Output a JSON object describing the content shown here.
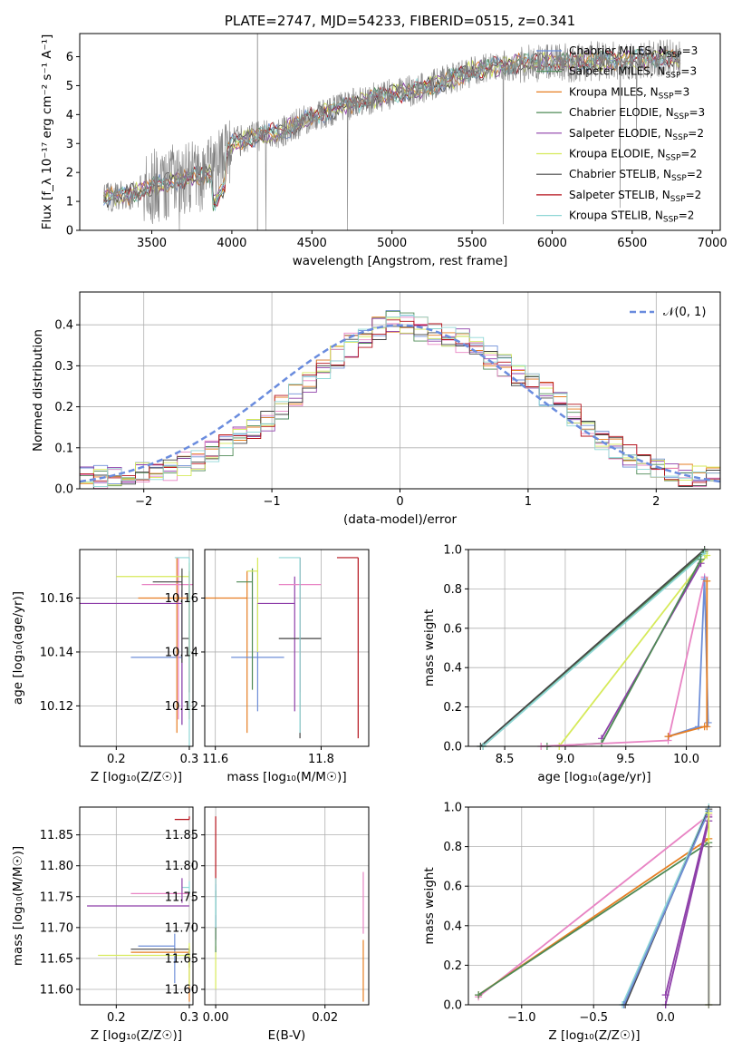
{
  "colors": {
    "blue": "#6f8fd8",
    "green": "#4e8a55",
    "orange": "#e67e22",
    "purple": "#8e3fa9",
    "pink": "#e884c4",
    "yellow": "#d6ea5a",
    "dark": "#444444",
    "red": "#b5121b",
    "cyan": "#8fd7d6",
    "gray": "#808080",
    "dashed": "#6a8cde"
  },
  "chart_data": [
    {
      "id": "spectrum",
      "type": "line",
      "title": "PLATE=2747, MJD=54233, FIBERID=0515, z=0.341",
      "xlabel": "wavelength [Angstrom, rest frame]",
      "ylabel": "Flux [f_λ 10⁻¹⁷ erg cm⁻² s⁻¹ A⁻¹]",
      "xlim": [
        3050,
        7050
      ],
      "ylim": [
        0,
        6.8
      ],
      "xticks": [
        "3500",
        "4000",
        "4500",
        "5000",
        "5500",
        "6000",
        "6500",
        "7000"
      ],
      "yticks": [
        "0",
        "1",
        "2",
        "3",
        "4",
        "5",
        "6"
      ],
      "legend_position": "right",
      "legend": [
        {
          "label": "Chabrier MILES, N",
          "sub": "SSP",
          "suffix": "=3",
          "color": "blue"
        },
        {
          "label": "Salpeter MILES, N",
          "sub": "SSP",
          "suffix": "=3",
          "color": "green"
        },
        {
          "label": "Kroupa MILES, N",
          "sub": "SSP",
          "suffix": "=3",
          "color": "orange"
        },
        {
          "label": "Chabrier ELODIE, N",
          "sub": "SSP",
          "suffix": "=3",
          "color": "green"
        },
        {
          "label": "Salpeter ELODIE, N",
          "sub": "SSP",
          "suffix": "=2",
          "color": "purple"
        },
        {
          "label": "Kroupa ELODIE, N",
          "sub": "SSP",
          "suffix": "=2",
          "color": "yellow"
        },
        {
          "label": "Chabrier STELIB, N",
          "sub": "SSP",
          "suffix": "=2",
          "color": "dark"
        },
        {
          "label": "Salpeter STELIB, N",
          "sub": "SSP",
          "suffix": "=2",
          "color": "red"
        },
        {
          "label": "Kroupa STELIB, N",
          "sub": "SSP",
          "suffix": "=2",
          "color": "cyan"
        }
      ],
      "continuum": [
        [
          3200,
          1.1
        ],
        [
          3400,
          1.3
        ],
        [
          3500,
          1.5
        ],
        [
          3700,
          1.8
        ],
        [
          3900,
          2.0
        ],
        [
          4000,
          3.0
        ],
        [
          4100,
          3.2
        ],
        [
          4300,
          3.4
        ],
        [
          4500,
          3.9
        ],
        [
          4700,
          4.3
        ],
        [
          4900,
          4.6
        ],
        [
          5100,
          4.8
        ],
        [
          5300,
          5.1
        ],
        [
          5500,
          5.5
        ],
        [
          5700,
          5.7
        ],
        [
          5900,
          5.8
        ],
        [
          6100,
          5.8
        ],
        [
          6300,
          5.85
        ],
        [
          6500,
          5.9
        ],
        [
          6700,
          5.95
        ],
        [
          6800,
          5.9
        ]
      ],
      "data_range": [
        3200,
        6800
      ]
    },
    {
      "id": "residuals",
      "type": "line",
      "xlabel": "(data-model)/error",
      "ylabel": "Normed distribution",
      "xlim": [
        -2.5,
        2.5
      ],
      "ylim": [
        0,
        0.48
      ],
      "xticks": [
        "−2",
        "−1",
        "0",
        "1",
        "2"
      ],
      "yticks": [
        "0.0",
        "0.1",
        "0.2",
        "0.3",
        "0.4"
      ],
      "legend_position": "top-right",
      "normal_label": "𝒩(0, 1)",
      "hist_base": [
        0.025,
        0.03,
        0.03,
        0.035,
        0.04,
        0.045,
        0.05,
        0.06,
        0.07,
        0.09,
        0.11,
        0.13,
        0.15,
        0.17,
        0.2,
        0.23,
        0.26,
        0.29,
        0.32,
        0.35,
        0.37,
        0.39,
        0.41,
        0.4,
        0.39,
        0.38,
        0.37,
        0.36,
        0.34,
        0.32,
        0.3,
        0.28,
        0.26,
        0.23,
        0.21,
        0.18,
        0.15,
        0.12,
        0.1,
        0.08,
        0.065,
        0.05,
        0.04,
        0.035,
        0.03,
        0.025
      ]
    },
    {
      "id": "age-vs-Z",
      "type": "scatter",
      "xlabel": "Z [log₁₀(Z/Z☉)]",
      "ylabel": "age  [log₁₀(age/yr)]",
      "xlim": [
        0.15,
        0.305
      ],
      "ylim": [
        10.105,
        10.178
      ],
      "xticks": [
        "0.2",
        "0.3"
      ],
      "yticks": [
        "10.12",
        "10.14",
        "10.16"
      ],
      "points": [
        {
          "x": 0.29,
          "y": 10.138,
          "xerr": [
            0.07,
            0.0
          ],
          "yerr": [
            0.025,
            0.025
          ],
          "color": "blue"
        },
        {
          "x": 0.283,
          "y": 10.155,
          "xerr": [
            0.0,
            0.0
          ],
          "yerr": [
            0.045,
            0.02
          ],
          "color": "orange"
        },
        {
          "x": 0.285,
          "y": 10.165,
          "xerr": [
            0.05,
            0.02
          ],
          "yerr": [
            0.05,
            0.01
          ],
          "color": "pink"
        },
        {
          "x": 0.3,
          "y": 10.168,
          "xerr": [
            0.1,
            0.0
          ],
          "yerr": [
            0.03,
            0.005
          ],
          "color": "yellow"
        },
        {
          "x": 0.29,
          "y": 10.158,
          "xerr": [
            0.14,
            0.0
          ],
          "yerr": [
            0.045,
            0.005
          ],
          "color": "purple"
        },
        {
          "x": 0.29,
          "y": 10.166,
          "xerr": [
            0.04,
            0.0
          ],
          "yerr": [
            0.03,
            0.005
          ],
          "color": "dark"
        },
        {
          "x": 0.3,
          "y": 10.145,
          "xerr": [
            0.01,
            0.0
          ],
          "yerr": [
            0.02,
            0.02
          ],
          "color": "dark"
        },
        {
          "x": 0.3,
          "y": 10.16,
          "xerr": [
            0.07,
            0.0
          ],
          "yerr": [
            0.045,
            0.01
          ],
          "color": "orange"
        },
        {
          "x": 0.3,
          "y": 10.175,
          "xerr": [
            0.02,
            0.0
          ],
          "yerr": [
            0.07,
            0.0
          ],
          "color": "cyan"
        }
      ]
    },
    {
      "id": "age-vs-mass",
      "type": "scatter",
      "xlabel": "mass [log₁₀(M/M☉)]",
      "ylabel": "",
      "xlim": [
        11.58,
        11.89
      ],
      "ylim": [
        10.105,
        10.178
      ],
      "xticks": [
        "11.6",
        "11.8"
      ],
      "yticks": [
        "10.12",
        "10.14",
        "10.16"
      ],
      "points": [
        {
          "x": 11.66,
          "y": 10.16,
          "xerr": [
            0.08,
            0.0
          ],
          "yerr": [
            0.05,
            0.01
          ],
          "color": "orange"
        },
        {
          "x": 11.68,
          "y": 10.138,
          "xerr": [
            0.05,
            0.05
          ],
          "yerr": [
            0.02,
            0.02
          ],
          "color": "blue"
        },
        {
          "x": 11.67,
          "y": 10.166,
          "xerr": [
            0.03,
            0.0
          ],
          "yerr": [
            0.04,
            0.005
          ],
          "color": "green"
        },
        {
          "x": 11.68,
          "y": 10.17,
          "xerr": [
            0.02,
            0.0
          ],
          "yerr": [
            0.03,
            0.005
          ],
          "color": "yellow"
        },
        {
          "x": 11.75,
          "y": 10.158,
          "xerr": [
            0.07,
            0.0
          ],
          "yerr": [
            0.04,
            0.01
          ],
          "color": "purple"
        },
        {
          "x": 11.76,
          "y": 10.165,
          "xerr": [
            0.04,
            0.04
          ],
          "yerr": [
            0.04,
            0.01
          ],
          "color": "pink"
        },
        {
          "x": 11.76,
          "y": 10.145,
          "xerr": [
            0.04,
            0.04
          ],
          "yerr": [
            0.037,
            0.03
          ],
          "color": "dark"
        },
        {
          "x": 11.76,
          "y": 10.175,
          "xerr": [
            0.04,
            0.0
          ],
          "yerr": [
            0.065,
            0.0
          ],
          "color": "cyan"
        },
        {
          "x": 11.87,
          "y": 10.175,
          "xerr": [
            0.04,
            0.0
          ],
          "yerr": [
            0.067,
            0.0
          ],
          "color": "red"
        }
      ]
    },
    {
      "id": "mass-weight-vs-age",
      "type": "line",
      "xlabel": "age  [log₁₀(age/yr)]",
      "ylabel": "mass weight",
      "xlim": [
        8.2,
        10.28
      ],
      "ylim": [
        0,
        1.0
      ],
      "xticks": [
        "8.5",
        "9.0",
        "9.5",
        "10.0"
      ],
      "yticks": [
        "0.0",
        "0.2",
        "0.4",
        "0.6",
        "0.8",
        "1.0"
      ],
      "series": [
        {
          "color": "dark",
          "x": [
            8.3,
            10.15
          ],
          "y": [
            0.0,
            1.0
          ]
        },
        {
          "color": "green",
          "x": [
            8.32,
            10.15
          ],
          "y": [
            0.0,
            0.99
          ]
        },
        {
          "color": "cyan",
          "x": [
            8.32,
            10.15
          ],
          "y": [
            0.0,
            0.98
          ]
        },
        {
          "color": "yellow",
          "x": [
            8.95,
            10.17
          ],
          "y": [
            0.0,
            0.97
          ]
        },
        {
          "color": "purple",
          "x": [
            9.3,
            10.12
          ],
          "y": [
            0.04,
            0.93
          ]
        },
        {
          "color": "green",
          "x": [
            8.85,
            9.3,
            10.12
          ],
          "y": [
            0.0,
            0.015,
            0.95
          ]
        },
        {
          "color": "pink",
          "x": [
            8.8,
            9.85,
            10.15
          ],
          "y": [
            0.0,
            0.03,
            0.86
          ]
        },
        {
          "color": "blue",
          "x": [
            9.85,
            10.1,
            10.15,
            10.18
          ],
          "y": [
            0.05,
            0.1,
            0.85,
            0.12
          ]
        },
        {
          "color": "orange",
          "x": [
            9.85,
            10.15,
            10.17,
            10.17
          ],
          "y": [
            0.05,
            0.1,
            0.1,
            0.84
          ]
        }
      ]
    },
    {
      "id": "mass-vs-Z",
      "type": "scatter",
      "xlabel": "Z [log₁₀(Z/Z☉)]",
      "ylabel": "mass [log₁₀(M/M☉)]",
      "xlim": [
        0.15,
        0.305
      ],
      "ylim": [
        11.575,
        11.895
      ],
      "xticks": [
        "0.2",
        "0.3"
      ],
      "yticks": [
        "11.60",
        "11.65",
        "11.70",
        "11.75",
        "11.80",
        "11.85"
      ],
      "points": [
        {
          "x": 0.3,
          "y": 11.875,
          "xerr": [
            0.02,
            0.0
          ],
          "yerr": [
            0.0,
            0.005
          ],
          "color": "red"
        },
        {
          "x": 0.3,
          "y": 11.765,
          "xerr": [
            0.01,
            0.0
          ],
          "yerr": [
            0.01,
            0.01
          ],
          "color": "cyan"
        },
        {
          "x": 0.3,
          "y": 11.755,
          "xerr": [
            0.08,
            0.0
          ],
          "yerr": [
            0.0,
            0.0
          ],
          "color": "pink"
        },
        {
          "x": 0.3,
          "y": 11.735,
          "xerr": [
            0.14,
            0.0
          ],
          "yerr": [
            0.0,
            0.0
          ],
          "color": "purple"
        },
        {
          "x": 0.28,
          "y": 11.67,
          "xerr": [
            0.05,
            0.0
          ],
          "yerr": [
            0.06,
            0.02
          ],
          "color": "blue"
        },
        {
          "x": 0.3,
          "y": 11.665,
          "xerr": [
            0.08,
            0.0
          ],
          "yerr": [
            0.03,
            0.0
          ],
          "color": "dark"
        },
        {
          "x": 0.3,
          "y": 11.66,
          "xerr": [
            0.08,
            0.0
          ],
          "yerr": [
            0.08,
            0.01
          ],
          "color": "orange"
        },
        {
          "x": 0.3,
          "y": 11.655,
          "xerr": [
            0.125,
            0.0
          ],
          "yerr": [
            0.05,
            0.02
          ],
          "color": "yellow"
        },
        {
          "x": 0.29,
          "y": 11.76,
          "xerr": [
            0.0,
            0.0
          ],
          "yerr": [
            0.02,
            0.02
          ],
          "color": "purple"
        }
      ]
    },
    {
      "id": "mass-vs-EBV",
      "type": "scatter",
      "xlabel": "E(B-V)",
      "ylabel": "",
      "xlim": [
        -0.002,
        0.028
      ],
      "ylim": [
        11.575,
        11.895
      ],
      "xticks": [
        "0.00",
        "0.02"
      ],
      "yticks": [
        "11.60",
        "11.65",
        "11.70",
        "11.75",
        "11.80",
        "11.85"
      ],
      "points": [
        {
          "x": 0.0,
          "y": 11.8,
          "xerr": [
            0,
            0
          ],
          "yerr": [
            0.05,
            0.08
          ],
          "color": "red"
        },
        {
          "x": 0.0,
          "y": 11.74,
          "xerr": [
            0,
            0
          ],
          "yerr": [
            0.04,
            0.03
          ],
          "color": "blue"
        },
        {
          "x": 0.0,
          "y": 11.65,
          "xerr": [
            0,
            0
          ],
          "yerr": [
            0.05,
            0.02
          ],
          "color": "yellow"
        },
        {
          "x": 0.0,
          "y": 11.7,
          "xerr": [
            0,
            0
          ],
          "yerr": [
            0.02,
            0.02
          ],
          "color": "purple"
        },
        {
          "x": 0.0,
          "y": 11.72,
          "xerr": [
            0,
            0
          ],
          "yerr": [
            0.06,
            0.04
          ],
          "color": "green"
        },
        {
          "x": 0.0,
          "y": 11.75,
          "xerr": [
            0,
            0
          ],
          "yerr": [
            0.05,
            0.03
          ],
          "color": "cyan"
        },
        {
          "x": 0.027,
          "y": 11.74,
          "xerr": [
            0,
            0
          ],
          "yerr": [
            0.05,
            0.05
          ],
          "color": "pink"
        },
        {
          "x": 0.027,
          "y": 11.63,
          "xerr": [
            0,
            0
          ],
          "yerr": [
            0.05,
            0.05
          ],
          "color": "orange"
        }
      ]
    },
    {
      "id": "mass-weight-vs-Z",
      "type": "line",
      "xlabel": "Z [log₁₀(Z/Z☉)]",
      "ylabel": "mass weight",
      "xlim": [
        -1.37,
        0.38
      ],
      "ylim": [
        0,
        1.0
      ],
      "xticks": [
        "−1.0",
        "−0.5",
        "0.0"
      ],
      "yticks": [
        "0.0",
        "0.2",
        "0.4",
        "0.6",
        "0.8",
        "1.0"
      ],
      "series": [
        {
          "color": "pink",
          "x": [
            -1.3,
            0.3
          ],
          "y": [
            0.04,
            0.96
          ]
        },
        {
          "color": "orange",
          "x": [
            -1.3,
            0.3
          ],
          "y": [
            0.05,
            0.84
          ]
        },
        {
          "color": "green",
          "x": [
            -1.3,
            0.3
          ],
          "y": [
            0.05,
            0.82
          ]
        },
        {
          "color": "cyan",
          "x": [
            -0.3,
            0.3
          ],
          "y": [
            0.0,
            1.0
          ]
        },
        {
          "color": "dark",
          "x": [
            -0.28,
            0.3
          ],
          "y": [
            0.0,
            0.99
          ]
        },
        {
          "color": "blue",
          "x": [
            -0.29,
            0.3
          ],
          "y": [
            0.0,
            0.98
          ]
        },
        {
          "color": "purple",
          "x": [
            0.0,
            0.3
          ],
          "y": [
            0.05,
            0.95
          ]
        },
        {
          "color": "purple",
          "x": [
            0.0,
            0.3
          ],
          "y": [
            0.0,
            0.93
          ]
        },
        {
          "color": "yellow",
          "x": [
            0.3,
            0.3
          ],
          "y": [
            0.0,
            0.97
          ]
        },
        {
          "color": "gray",
          "x": [
            0.3,
            0.3
          ],
          "y": [
            0.0,
            0.8
          ]
        }
      ]
    }
  ]
}
